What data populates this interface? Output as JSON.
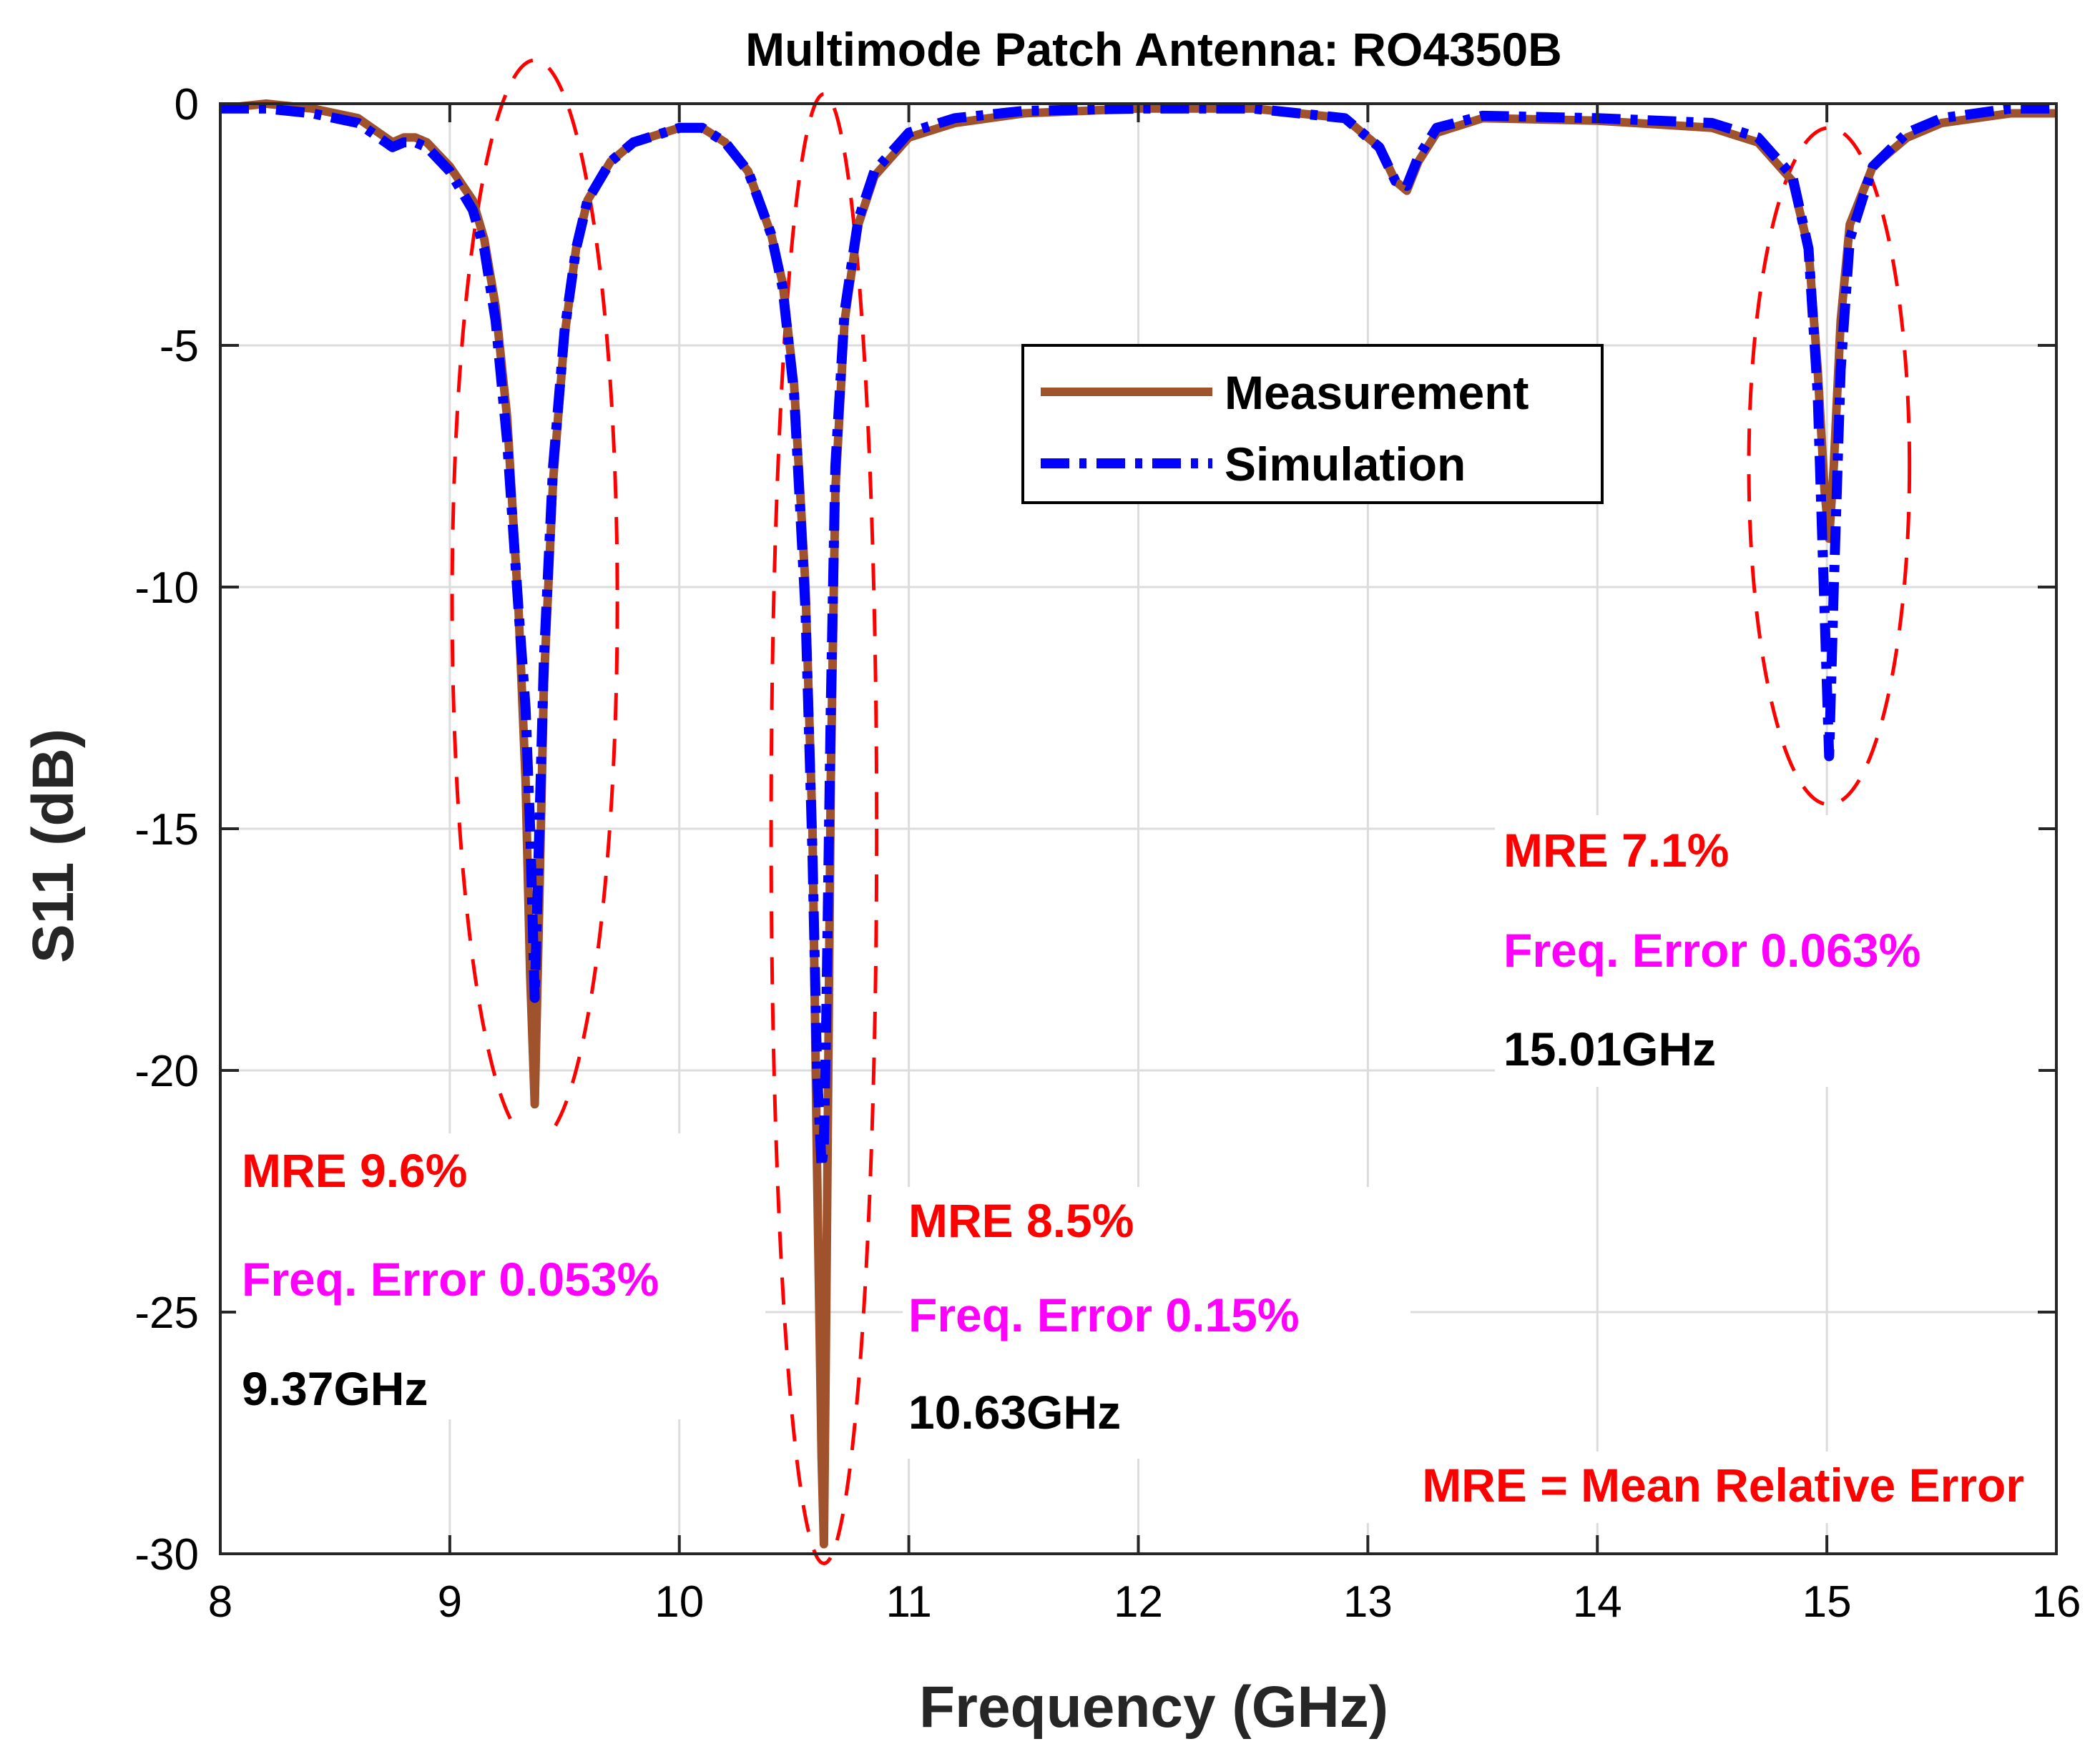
{
  "chart_data": {
    "type": "line",
    "title": "Multimode Patch Antenna: RO4350B",
    "xlabel": "Frequency (GHz)",
    "ylabel": "S11 (dB)",
    "xlim": [
      8,
      16
    ],
    "ylim": [
      -30,
      0
    ],
    "xticks": [
      8,
      9,
      10,
      11,
      12,
      13,
      14,
      15,
      16
    ],
    "yticks": [
      0,
      -5,
      -10,
      -15,
      -20,
      -25,
      -30
    ],
    "xtick_labels": [
      "8",
      "9",
      "10",
      "11",
      "12",
      "13",
      "14",
      "15",
      "16"
    ],
    "ytick_labels": [
      "0",
      "-5",
      "-10",
      "-15",
      "-20",
      "-25",
      "-30"
    ],
    "grid": true,
    "legend_position": "upper-center",
    "series": [
      {
        "name": "Measurement",
        "color": "#A0522D",
        "style": "solid",
        "x": [
          8.0,
          8.2,
          8.4,
          8.6,
          8.75,
          8.8,
          8.85,
          8.9,
          9.0,
          9.1,
          9.15,
          9.2,
          9.25,
          9.3,
          9.33,
          9.35,
          9.37,
          9.39,
          9.41,
          9.45,
          9.5,
          9.55,
          9.6,
          9.7,
          9.8,
          10.0,
          10.1,
          10.2,
          10.3,
          10.4,
          10.45,
          10.5,
          10.55,
          10.58,
          10.6,
          10.62,
          10.63,
          10.64,
          10.66,
          10.68,
          10.72,
          10.78,
          10.85,
          11.0,
          11.2,
          11.5,
          12.0,
          12.5,
          12.9,
          13.05,
          13.12,
          13.17,
          13.22,
          13.3,
          13.5,
          14.0,
          14.5,
          14.7,
          14.85,
          14.92,
          14.96,
          14.99,
          15.01,
          15.03,
          15.06,
          15.1,
          15.2,
          15.35,
          15.5,
          15.8,
          16.0
        ],
        "y": [
          -0.1,
          0.0,
          -0.1,
          -0.3,
          -0.8,
          -0.7,
          -0.7,
          -0.8,
          -1.3,
          -2.0,
          -2.8,
          -4.2,
          -6.5,
          -10.5,
          -14.0,
          -18.0,
          -20.7,
          -16.5,
          -12.0,
          -7.8,
          -4.8,
          -3.0,
          -2.0,
          -1.2,
          -0.8,
          -0.5,
          -0.5,
          -0.8,
          -1.4,
          -2.7,
          -3.7,
          -5.8,
          -10.0,
          -15.0,
          -22.0,
          -28.0,
          -29.8,
          -25.0,
          -14.0,
          -8.0,
          -4.5,
          -2.5,
          -1.5,
          -0.7,
          -0.4,
          -0.2,
          -0.1,
          -0.1,
          -0.3,
          -0.9,
          -1.6,
          -1.8,
          -1.2,
          -0.6,
          -0.3,
          -0.35,
          -0.5,
          -0.8,
          -1.6,
          -3.0,
          -5.5,
          -8.0,
          -9.0,
          -7.5,
          -4.5,
          -2.5,
          -1.3,
          -0.7,
          -0.4,
          -0.2,
          -0.2
        ]
      },
      {
        "name": "Simulation",
        "color": "#0000FF",
        "style": "dashdot",
        "x": [
          8.0,
          8.2,
          8.4,
          8.6,
          8.75,
          8.8,
          8.85,
          8.9,
          9.0,
          9.1,
          9.15,
          9.2,
          9.25,
          9.3,
          9.33,
          9.35,
          9.37,
          9.39,
          9.41,
          9.45,
          9.5,
          9.55,
          9.6,
          9.7,
          9.8,
          10.0,
          10.1,
          10.2,
          10.3,
          10.4,
          10.45,
          10.5,
          10.55,
          10.58,
          10.6,
          10.62,
          10.63,
          10.64,
          10.66,
          10.68,
          10.72,
          10.78,
          10.85,
          11.0,
          11.2,
          11.5,
          12.0,
          12.5,
          12.9,
          13.05,
          13.12,
          13.17,
          13.22,
          13.3,
          13.5,
          14.0,
          14.5,
          14.7,
          14.85,
          14.92,
          14.96,
          14.99,
          15.01,
          15.03,
          15.06,
          15.1,
          15.2,
          15.35,
          15.5,
          15.8,
          16.0
        ],
        "y": [
          -0.1,
          -0.1,
          -0.2,
          -0.4,
          -0.9,
          -0.8,
          -0.8,
          -0.9,
          -1.4,
          -2.2,
          -3.0,
          -4.5,
          -7.0,
          -10.5,
          -12.5,
          -15.0,
          -18.5,
          -15.0,
          -11.5,
          -7.5,
          -4.7,
          -3.0,
          -2.0,
          -1.2,
          -0.8,
          -0.5,
          -0.5,
          -0.8,
          -1.4,
          -2.7,
          -3.8,
          -6.0,
          -10.5,
          -15.5,
          -20.0,
          -22.0,
          -21.5,
          -19.0,
          -12.5,
          -7.5,
          -4.3,
          -2.4,
          -1.4,
          -0.6,
          -0.3,
          -0.15,
          -0.1,
          -0.1,
          -0.3,
          -0.9,
          -1.6,
          -1.7,
          -1.1,
          -0.5,
          -0.25,
          -0.3,
          -0.4,
          -0.7,
          -1.5,
          -3.0,
          -6.0,
          -10.5,
          -13.5,
          -10.0,
          -5.5,
          -2.8,
          -1.3,
          -0.6,
          -0.3,
          -0.1,
          -0.1
        ]
      }
    ],
    "ellipses": [
      {
        "cx": 9.37,
        "cy": -10.3,
        "rx": 0.36,
        "ry": 11.2,
        "color": "#FF0000"
      },
      {
        "cx": 10.63,
        "cy": -15.0,
        "rx": 0.23,
        "ry": 15.2,
        "color": "#FF0000"
      },
      {
        "cx": 15.01,
        "cy": -7.5,
        "rx": 0.35,
        "ry": 7.0,
        "color": "#FF0000"
      }
    ],
    "annotations": [
      {
        "group": "peak1",
        "lines": [
          {
            "text": "MRE 9.6%",
            "color": "#FF0000"
          },
          {
            "text": "Freq. Error 0.053%",
            "color": "#FF00FF"
          },
          {
            "text": "9.37GHz",
            "color": "#000000"
          }
        ]
      },
      {
        "group": "peak2",
        "lines": [
          {
            "text": "MRE 8.5%",
            "color": "#FF0000"
          },
          {
            "text": "Freq. Error 0.15%",
            "color": "#FF00FF"
          },
          {
            "text": "10.63GHz",
            "color": "#000000"
          }
        ]
      },
      {
        "group": "peak3",
        "lines": [
          {
            "text": "MRE 7.1%",
            "color": "#FF0000"
          },
          {
            "text": "Freq. Error 0.063%",
            "color": "#FF00FF"
          },
          {
            "text": "15.01GHz",
            "color": "#000000"
          }
        ]
      },
      {
        "group": "footnote",
        "lines": [
          {
            "text": "MRE = Mean Relative Error",
            "color": "#FF0000"
          }
        ]
      }
    ]
  }
}
